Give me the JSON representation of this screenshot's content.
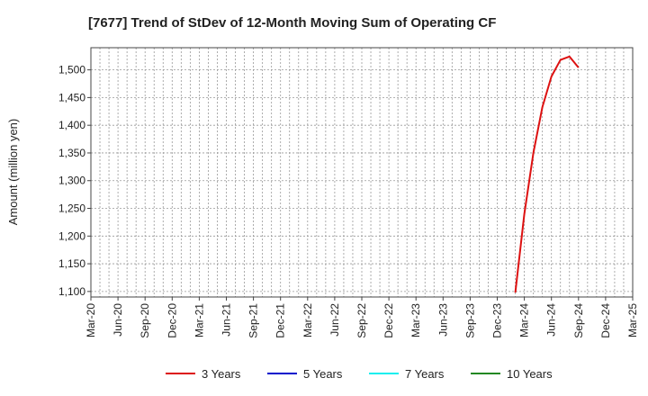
{
  "chart_data": {
    "type": "line",
    "title": "[7677]  Trend of StDev of 12-Month Moving Sum of Operating CF",
    "xlabel": "",
    "ylabel": "Amount (million yen)",
    "x_ticks": [
      "Mar-20",
      "Jun-20",
      "Sep-20",
      "Dec-20",
      "Mar-21",
      "Jun-21",
      "Sep-21",
      "Dec-21",
      "Mar-22",
      "Jun-22",
      "Sep-22",
      "Dec-22",
      "Mar-23",
      "Jun-23",
      "Sep-23",
      "Dec-23",
      "Mar-24",
      "Jun-24",
      "Sep-24",
      "Dec-24",
      "Mar-25"
    ],
    "y_ticks": [
      1100,
      1150,
      1200,
      1250,
      1300,
      1350,
      1400,
      1450,
      1500
    ],
    "ylim": [
      1090,
      1540
    ],
    "xlim": [
      "2020-03",
      "2025-03"
    ],
    "grid": true,
    "legend_position": "bottom",
    "series": [
      {
        "name": "3 Years",
        "color": "#dd1111",
        "points": [
          {
            "x": "2024-02",
            "y": 1098
          },
          {
            "x": "2024-03",
            "y": 1240
          },
          {
            "x": "2024-04",
            "y": 1350
          },
          {
            "x": "2024-05",
            "y": 1433
          },
          {
            "x": "2024-06",
            "y": 1488
          },
          {
            "x": "2024-07",
            "y": 1518
          },
          {
            "x": "2024-08",
            "y": 1524
          },
          {
            "x": "2024-09",
            "y": 1504
          }
        ]
      },
      {
        "name": "5 Years",
        "color": "#0011cc",
        "points": []
      },
      {
        "name": "7 Years",
        "color": "#11eeee",
        "points": []
      },
      {
        "name": "10 Years",
        "color": "#228822",
        "points": []
      }
    ]
  }
}
